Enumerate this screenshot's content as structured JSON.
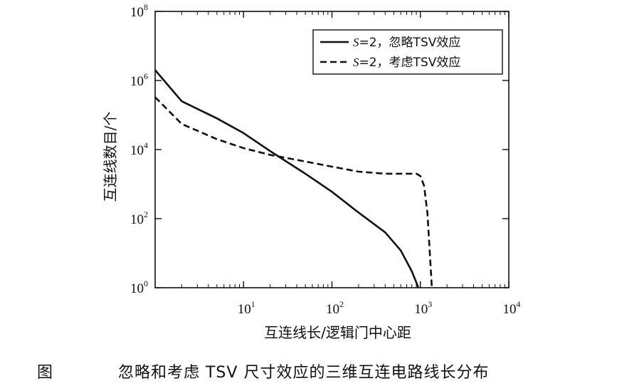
{
  "chart_data": {
    "type": "line",
    "xscale": "log",
    "yscale": "log",
    "xlim": [
      1,
      10000
    ],
    "ylim": [
      1,
      100000000
    ],
    "x_ticks": [
      {
        "base": "10",
        "exp": "1"
      },
      {
        "base": "10",
        "exp": "2"
      },
      {
        "base": "10",
        "exp": "3"
      },
      {
        "base": "10",
        "exp": "4"
      }
    ],
    "y_ticks": [
      {
        "base": "10",
        "exp": "0"
      },
      {
        "base": "10",
        "exp": "2"
      },
      {
        "base": "10",
        "exp": "4"
      },
      {
        "base": "10",
        "exp": "6"
      },
      {
        "base": "10",
        "exp": "8"
      }
    ],
    "xlabel": "互连线长/逻辑门中心距",
    "ylabel": "互连线数目/个",
    "legend_position": "top-right",
    "series": [
      {
        "name": "S=2，忽略TSV效应",
        "name_italic": "S",
        "name_rest": "=2，忽略TSV效应",
        "style": "solid",
        "color": "#111111",
        "x": [
          1,
          2,
          5,
          10,
          20,
          50,
          100,
          200,
          400,
          600,
          800,
          950
        ],
        "y": [
          2000000,
          250000,
          80000,
          30000,
          9000,
          2000,
          600,
          150,
          40,
          12,
          3,
          1
        ]
      },
      {
        "name": "S=2，考虑TSV效应",
        "name_italic": "S",
        "name_rest": "=2，考虑TSV效应",
        "style": "dashed",
        "color": "#111111",
        "x": [
          1,
          2,
          5,
          10,
          20,
          50,
          100,
          200,
          400,
          700,
          900,
          1000,
          1100,
          1200,
          1300,
          1350
        ],
        "y": [
          330000,
          55000,
          20000,
          11000,
          7000,
          4500,
          3200,
          2300,
          2000,
          2000,
          2000,
          1700,
          900,
          150,
          5,
          1
        ]
      }
    ]
  },
  "caption": {
    "label": "图",
    "text": "忽略和考虑 TSV 尺寸效应的三维互连电路线长分布"
  }
}
